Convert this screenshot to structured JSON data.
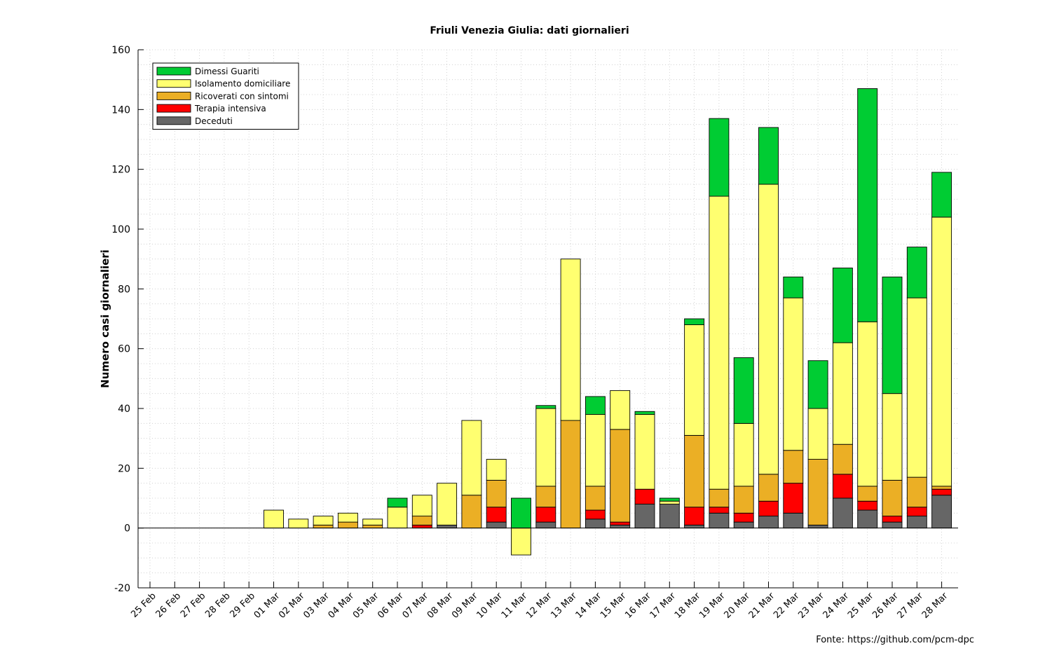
{
  "chart_data": {
    "type": "bar",
    "stacked": true,
    "title": "Friuli Venezia Giulia: dati giornalieri",
    "xlabel": "",
    "ylabel": "Numero casi giornalieri",
    "ylim": [
      -20,
      160
    ],
    "yticks": [
      -20,
      0,
      20,
      40,
      60,
      80,
      100,
      120,
      140,
      160
    ],
    "grid": true,
    "legend_position": "top-left",
    "categories": [
      "25 Feb",
      "26 Feb",
      "27 Feb",
      "28 Feb",
      "29 Feb",
      "01 Mar",
      "02 Mar",
      "03 Mar",
      "04 Mar",
      "05 Mar",
      "06 Mar",
      "07 Mar",
      "08 Mar",
      "09 Mar",
      "10 Mar",
      "11 Mar",
      "12 Mar",
      "13 Mar",
      "14 Mar",
      "15 Mar",
      "16 Mar",
      "17 Mar",
      "18 Mar",
      "19 Mar",
      "20 Mar",
      "21 Mar",
      "22 Mar",
      "23 Mar",
      "24 Mar",
      "25 Mar",
      "26 Mar",
      "27 Mar",
      "28 Mar"
    ],
    "series": [
      {
        "name": "Deceduti",
        "color": "#666666",
        "values": [
          0,
          0,
          0,
          0,
          0,
          0,
          0,
          0,
          0,
          0,
          0,
          0,
          1,
          0,
          2,
          0,
          2,
          0,
          3,
          1,
          8,
          8,
          1,
          5,
          2,
          4,
          5,
          1,
          10,
          6,
          2,
          4,
          11
        ]
      },
      {
        "name": "Terapia intensiva",
        "color": "#ff0000",
        "values": [
          0,
          0,
          0,
          0,
          0,
          0,
          0,
          0,
          0,
          0,
          0,
          1,
          0,
          0,
          5,
          0,
          5,
          0,
          3,
          1,
          5,
          0,
          6,
          2,
          3,
          5,
          10,
          0,
          8,
          3,
          2,
          3,
          2
        ]
      },
      {
        "name": "Ricoverati con sintomi",
        "color": "#ebaf25",
        "values": [
          0,
          0,
          0,
          0,
          0,
          0,
          0,
          1,
          2,
          1,
          0,
          3,
          0,
          11,
          9,
          0,
          7,
          36,
          8,
          31,
          0,
          0,
          24,
          6,
          9,
          9,
          11,
          22,
          10,
          5,
          12,
          10,
          1
        ]
      },
      {
        "name": "Isolamento domiciliare",
        "color": "#ffff70",
        "values": [
          0,
          0,
          0,
          0,
          0,
          6,
          3,
          3,
          3,
          2,
          7,
          7,
          14,
          25,
          7,
          -9,
          26,
          54,
          24,
          13,
          25,
          1,
          37,
          98,
          21,
          97,
          51,
          17,
          34,
          55,
          29,
          60,
          90
        ]
      },
      {
        "name": "Dimessi Guariti",
        "color": "#00cc33",
        "values": [
          0,
          0,
          0,
          0,
          0,
          0,
          0,
          0,
          0,
          0,
          3,
          0,
          0,
          0,
          0,
          10,
          1,
          0,
          6,
          0,
          1,
          1,
          2,
          26,
          22,
          19,
          7,
          16,
          25,
          78,
          39,
          17,
          15
        ]
      }
    ],
    "legend_order": [
      "Dimessi Guariti",
      "Isolamento domiciliare",
      "Ricoverati con sintomi",
      "Terapia intensiva",
      "Deceduti"
    ]
  },
  "source_text": "Fonte:  https://github.com/pcm-dpc"
}
